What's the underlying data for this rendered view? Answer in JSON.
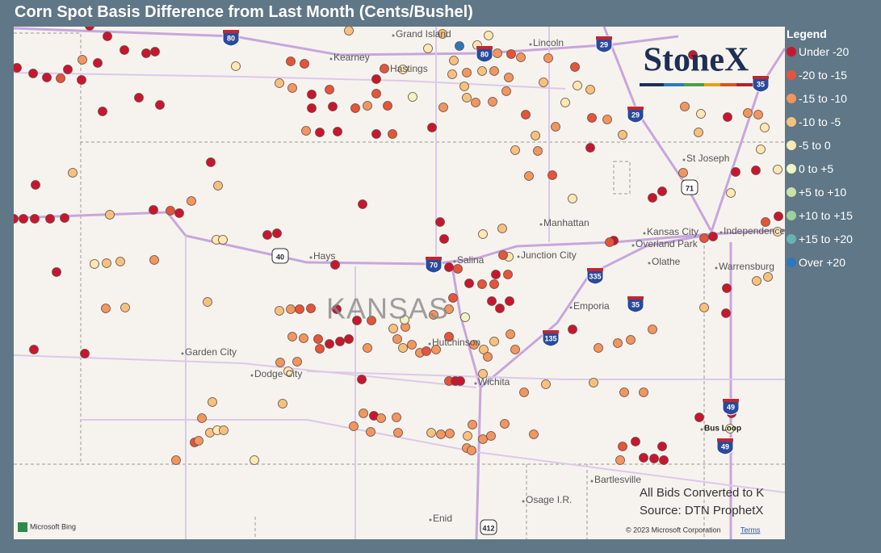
{
  "header": {
    "title": "Corn Spot Basis Difference from Last Month (Cents/Bushel)"
  },
  "legend": {
    "title": "Legend",
    "items": [
      {
        "label": "Under -20",
        "color": "#c8162e"
      },
      {
        "label": "-20 to -15",
        "color": "#e4553a"
      },
      {
        "label": "-15 to -10",
        "color": "#f0965f"
      },
      {
        "label": "-10 to -5",
        "color": "#f5c27e"
      },
      {
        "label": "-5 to 0",
        "color": "#fbe8b2"
      },
      {
        "label": "0 to +5",
        "color": "#eef4c2"
      },
      {
        "label": "+5 to +10",
        "color": "#c6e4a8"
      },
      {
        "label": "+10 to +15",
        "color": "#9dd19a"
      },
      {
        "label": "+15 to +20",
        "color": "#67b3b3"
      },
      {
        "label": "Over +20",
        "color": "#2a78bd"
      }
    ]
  },
  "map": {
    "state_label": "KANSAS",
    "cities": [
      "Grand Island",
      "Kearney",
      "Hastings",
      "Lincoln",
      "St Joseph",
      "Manhattan",
      "Kansas City",
      "Overland Park",
      "Independence",
      "Olathe",
      "Warrensburg",
      "Junction City",
      "Salina",
      "Hays",
      "Emporia",
      "Hutchinson",
      "Garden City",
      "Dodge City",
      "Wichita",
      "Bartlesville",
      "Osage I.R.",
      "Enid",
      "Bus Loop"
    ],
    "highways": [
      "80",
      "80",
      "29",
      "35",
      "29",
      "71",
      "40",
      "70",
      "335",
      "35",
      "135",
      "49",
      "49",
      "412"
    ]
  },
  "logo": "StoneX",
  "notes": [
    "All Bids Converted to K",
    "Source: DTN ProphetX"
  ],
  "attribution": {
    "bing": "Microsoft Bing",
    "copyright": "© 2023 Microsoft Corporation",
    "terms": "Terms"
  }
}
